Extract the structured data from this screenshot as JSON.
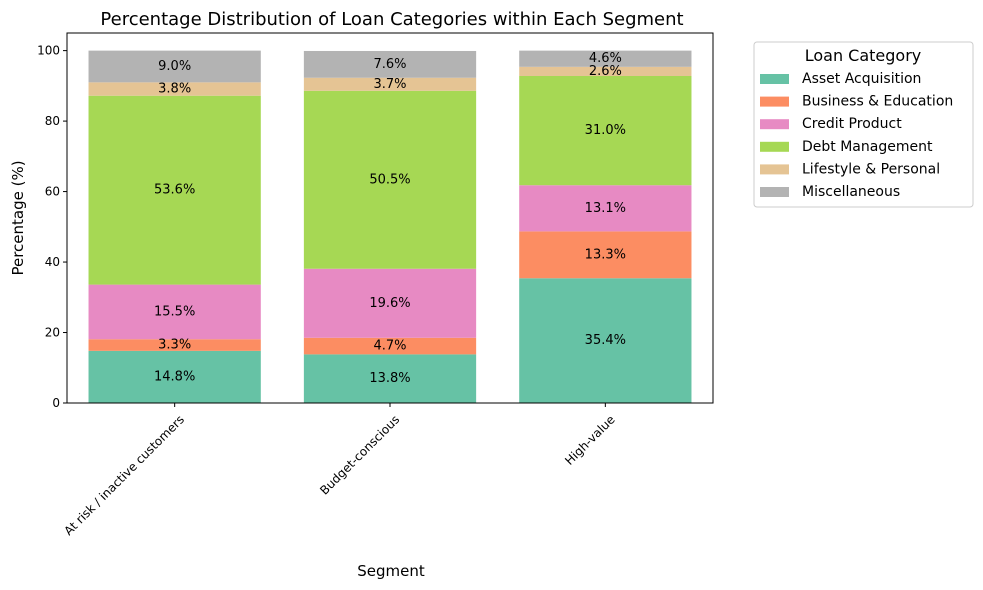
{
  "chart_data": {
    "type": "bar",
    "stacked": true,
    "title": "Percentage Distribution of Loan Categories within Each Segment",
    "xlabel": "Segment",
    "ylabel": "Percentage (%)",
    "ylim": [
      0,
      105
    ],
    "yticks": [
      0,
      20,
      40,
      60,
      80,
      100
    ],
    "categories": [
      "At risk / inactive customers",
      "Budget-conscious",
      "High-value"
    ],
    "grid": false,
    "legend": {
      "title": "Loan Category",
      "placement": "outside-right"
    },
    "series": [
      {
        "name": "Asset Acquisition",
        "color": "#66c2a5",
        "values": [
          14.8,
          13.8,
          35.4
        ]
      },
      {
        "name": "Business & Education",
        "color": "#fc8d62",
        "values": [
          3.3,
          4.7,
          13.3
        ]
      },
      {
        "name": "Credit Product",
        "color": "#e78ac3",
        "values": [
          15.5,
          19.6,
          13.1
        ]
      },
      {
        "name": "Debt Management",
        "color": "#a6d854",
        "values": [
          53.6,
          50.5,
          31.0
        ]
      },
      {
        "name": "Lifestyle & Personal",
        "color": "#e5c494",
        "values": [
          3.8,
          3.7,
          2.6
        ]
      },
      {
        "name": "Miscellaneous",
        "color": "#b3b3b3",
        "values": [
          9.0,
          7.6,
          4.6
        ]
      }
    ]
  }
}
